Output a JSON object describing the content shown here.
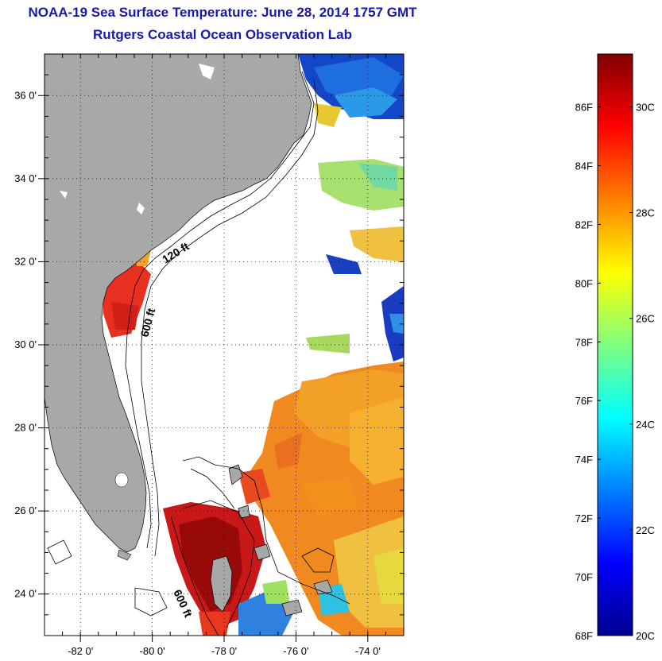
{
  "title": "NOAA-19 Sea Surface Temperature:  June 28, 2014 1757 GMT",
  "subtitle": "Rutgers Coastal Ocean Observation Lab",
  "map": {
    "lon_range": [
      -83,
      -73
    ],
    "lat_range": [
      23,
      37
    ],
    "lat_ticks": [
      {
        "value": 36,
        "label": "36 0'"
      },
      {
        "value": 34,
        "label": "34 0'"
      },
      {
        "value": 32,
        "label": "32 0'"
      },
      {
        "value": 30,
        "label": "30 0'"
      },
      {
        "value": 28,
        "label": "28 0'"
      },
      {
        "value": 26,
        "label": "26 0'"
      },
      {
        "value": 24,
        "label": "24 0'"
      }
    ],
    "lon_ticks": [
      {
        "value": -82,
        "label": "-82 0'"
      },
      {
        "value": -80,
        "label": "-80 0'"
      },
      {
        "value": -78,
        "label": "-78 0'"
      },
      {
        "value": -76,
        "label": "-76 0'"
      },
      {
        "value": -74,
        "label": "-74 0'"
      }
    ],
    "contour_labels": [
      "120 ft",
      "600 ft",
      "600 ft"
    ],
    "land_color": "#a8a8a8"
  },
  "colorbar": {
    "f_labels": [
      "86F",
      "84F",
      "82F",
      "80F",
      "78F",
      "76F",
      "74F",
      "72F",
      "70F",
      "68F"
    ],
    "c_labels": [
      "30C",
      "28C",
      "26C",
      "24C",
      "22C",
      "20C"
    ],
    "range_c": [
      20,
      31
    ]
  }
}
